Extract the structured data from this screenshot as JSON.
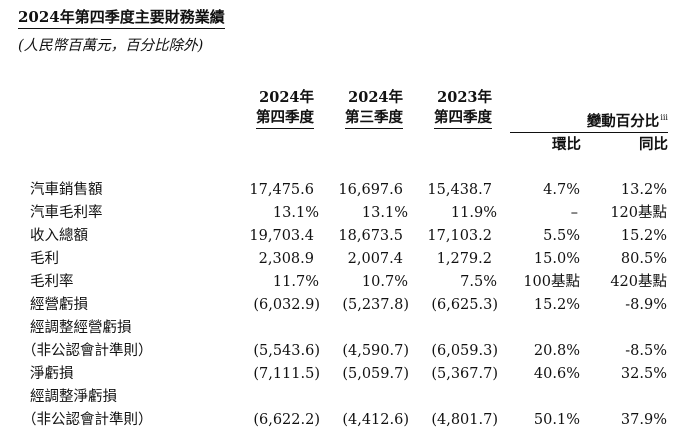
{
  "title": "2024年第四季度主要財務業績",
  "subtitle": "(人民幣百萬元，百分比除外)",
  "columns": {
    "q4_2024": {
      "line1": "2024年",
      "line2": "第四季度"
    },
    "q3_2024": {
      "line1": "2024年",
      "line2": "第三季度"
    },
    "q4_2023": {
      "line1": "2023年",
      "line2": "第四季度"
    },
    "change_header": "變動百分比",
    "change_footnote": "iii",
    "qoq": "環比",
    "yoy": "同比"
  },
  "rows": [
    {
      "label": "汽車銷售額",
      "q4_2024": "17,475.6",
      "q3_2024": "16,697.6",
      "q4_2023": "15,438.7",
      "qoq": "4.7%",
      "yoy": "13.2%"
    },
    {
      "label": "汽車毛利率",
      "q4_2024": "13.1%",
      "q3_2024": "13.1%",
      "q4_2023": "11.9%",
      "qoq": "–",
      "yoy": "120基點"
    },
    {
      "label": "收入總額",
      "q4_2024": "19,703.4",
      "q3_2024": "18,673.5",
      "q4_2023": "17,103.2",
      "qoq": "5.5%",
      "yoy": "15.2%"
    },
    {
      "label": "毛利",
      "q4_2024": "2,308.9",
      "q3_2024": "2,007.4",
      "q4_2023": "1,279.2",
      "qoq": "15.0%",
      "yoy": "80.5%"
    },
    {
      "label": "毛利率",
      "q4_2024": "11.7%",
      "q3_2024": "10.7%",
      "q4_2023": "7.5%",
      "qoq": "100基點",
      "yoy": "420基點"
    },
    {
      "label": "經營虧損",
      "q4_2024": "(6,032.9)",
      "q3_2024": "(5,237.8)",
      "q4_2023": "(6,625.3)",
      "qoq": "15.2%",
      "yoy": "-8.9%"
    },
    {
      "label": "經調整經營虧損",
      "q4_2024": "",
      "q3_2024": "",
      "q4_2023": "",
      "qoq": "",
      "yoy": ""
    },
    {
      "label": "（非公認會計準則）",
      "q4_2024": "(5,543.6)",
      "q3_2024": "(4,590.7)",
      "q4_2023": "(6,059.3)",
      "qoq": "20.8%",
      "yoy": "-8.5%"
    },
    {
      "label": "淨虧損",
      "q4_2024": "(7,111.5)",
      "q3_2024": "(5,059.7)",
      "q4_2023": "(5,367.7)",
      "qoq": "40.6%",
      "yoy": "32.5%"
    },
    {
      "label": "經調整淨虧損",
      "q4_2024": "",
      "q3_2024": "",
      "q4_2023": "",
      "qoq": "",
      "yoy": ""
    },
    {
      "label": "（非公認會計準則）",
      "q4_2024": "(6,622.2)",
      "q3_2024": "(4,412.6)",
      "q4_2023": "(4,801.7)",
      "qoq": "50.1%",
      "yoy": "37.9%"
    }
  ]
}
